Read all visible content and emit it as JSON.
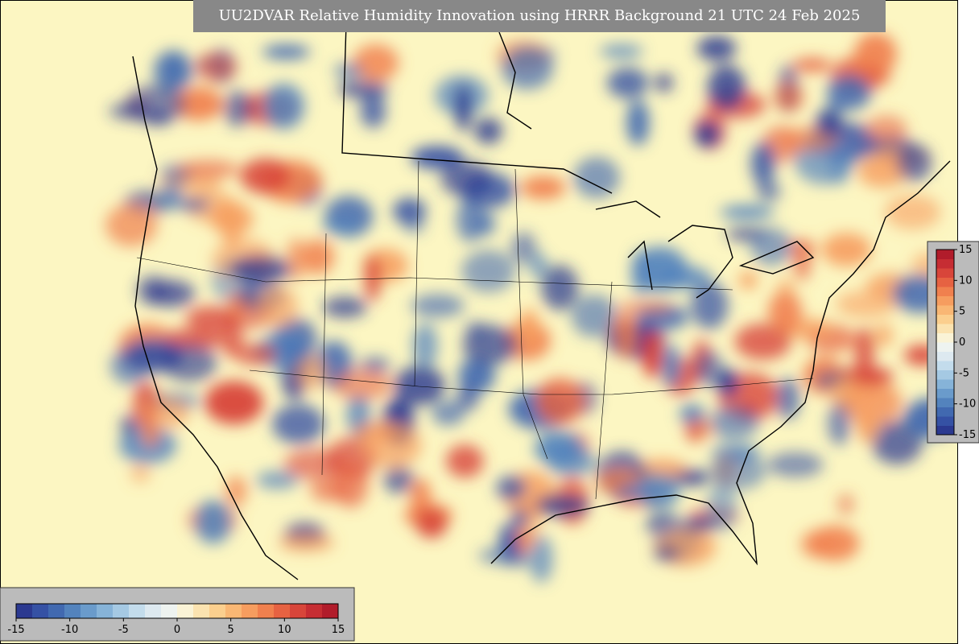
{
  "title": "UU2DVAR Relative Humidity Innovation using HRRR Background 21 UTC 24 Feb 2025",
  "colorbar": {
    "lim": [
      -15,
      15
    ],
    "ticks": [
      -15,
      -10,
      -5,
      0,
      5,
      10,
      15
    ],
    "colors": [
      "#2b3990",
      "#3551a4",
      "#4169b0",
      "#5383bd",
      "#6a9bcb",
      "#86b3d8",
      "#a5c9e3",
      "#c3dcec",
      "#dde9f0",
      "#eef3f0",
      "#faf3d6",
      "#fbe3b0",
      "#fbcf8e",
      "#f9b774",
      "#f69d5f",
      "#f0804e",
      "#e66242",
      "#d8453a",
      "#c62d33",
      "#b11c2b"
    ]
  }
}
